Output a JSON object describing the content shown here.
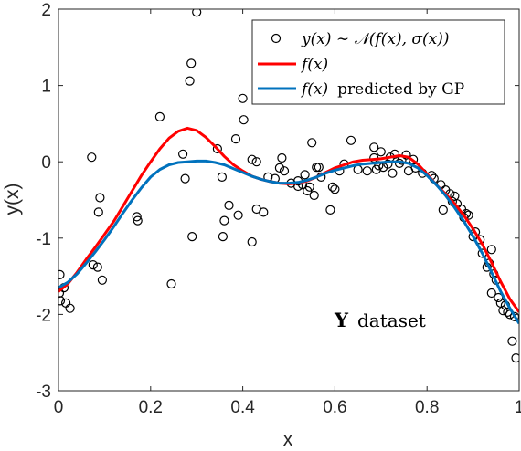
{
  "chart_data": {
    "type": "scatter",
    "xlabel": "x",
    "ylabel": "y(x)",
    "xlim": [
      0,
      1
    ],
    "ylim": [
      -3,
      2
    ],
    "xticks": [
      "0",
      "0.2",
      "0.4",
      "0.6",
      "0.8",
      "1"
    ],
    "yticks": [
      "-3",
      "-2",
      "-1",
      "0",
      "1",
      "2"
    ],
    "grid": false,
    "legend_placement": "top-right",
    "annotation": {
      "bold": "Y",
      "text": "dataset"
    },
    "legend": {
      "data_label": "y(x) ∼ 𝒩(f(x), σ(x))",
      "f_label": "f(x)",
      "gp_label_math": "f(x)",
      "gp_label_text": "predicted by GP"
    },
    "colors": {
      "data": "#000000",
      "f": "#ff0000",
      "gp": "#0072bd"
    },
    "series": [
      {
        "name": "y(x) ∼ 𝒩(f(x), σ(x))",
        "kind": "markers",
        "points": [
          [
            0.002,
            -1.72
          ],
          [
            0.003,
            -1.48
          ],
          [
            0.004,
            -1.82
          ],
          [
            0.012,
            -1.65
          ],
          [
            0.016,
            -1.85
          ],
          [
            0.025,
            -1.92
          ],
          [
            0.072,
            0.06
          ],
          [
            0.075,
            -1.35
          ],
          [
            0.085,
            -1.38
          ],
          [
            0.087,
            -0.66
          ],
          [
            0.09,
            -0.47
          ],
          [
            0.095,
            -1.55
          ],
          [
            0.17,
            -0.72
          ],
          [
            0.172,
            -0.77
          ],
          [
            0.22,
            0.59
          ],
          [
            0.245,
            -1.6
          ],
          [
            0.27,
            0.1
          ],
          [
            0.275,
            -0.22
          ],
          [
            0.285,
            1.06
          ],
          [
            0.288,
            1.29
          ],
          [
            0.29,
            -0.98
          ],
          [
            0.3,
            1.96
          ],
          [
            0.345,
            0.17
          ],
          [
            0.355,
            -0.2
          ],
          [
            0.357,
            -0.98
          ],
          [
            0.36,
            -0.77
          ],
          [
            0.37,
            -0.57
          ],
          [
            0.385,
            0.3
          ],
          [
            0.39,
            -0.7
          ],
          [
            0.4,
            0.83
          ],
          [
            0.402,
            0.55
          ],
          [
            0.42,
            0.03
          ],
          [
            0.42,
            -1.05
          ],
          [
            0.43,
            0.0
          ],
          [
            0.43,
            -0.62
          ],
          [
            0.433,
            0.82
          ],
          [
            0.445,
            -0.66
          ],
          [
            0.455,
            -0.2
          ],
          [
            0.47,
            -0.22
          ],
          [
            0.48,
            -0.08
          ],
          [
            0.485,
            0.05
          ],
          [
            0.49,
            -0.12
          ],
          [
            0.505,
            -0.28
          ],
          [
            0.52,
            -0.32
          ],
          [
            0.52,
            -0.25
          ],
          [
            0.53,
            -0.3
          ],
          [
            0.535,
            -0.17
          ],
          [
            0.54,
            -0.38
          ],
          [
            0.545,
            -0.33
          ],
          [
            0.55,
            0.25
          ],
          [
            0.555,
            -0.44
          ],
          [
            0.56,
            -0.07
          ],
          [
            0.565,
            -0.07
          ],
          [
            0.57,
            -0.2
          ],
          [
            0.59,
            -0.63
          ],
          [
            0.595,
            -0.33
          ],
          [
            0.6,
            -0.36
          ],
          [
            0.61,
            -0.12
          ],
          [
            0.62,
            -0.03
          ],
          [
            0.635,
            0.28
          ],
          [
            0.65,
            -0.1
          ],
          [
            0.67,
            -0.12
          ],
          [
            0.685,
            0.05
          ],
          [
            0.685,
            0.19
          ],
          [
            0.69,
            -0.1
          ],
          [
            0.695,
            -0.05
          ],
          [
            0.7,
            0.13
          ],
          [
            0.705,
            -0.07
          ],
          [
            0.715,
            -0.03
          ],
          [
            0.72,
            0.06
          ],
          [
            0.725,
            -0.15
          ],
          [
            0.73,
            0.1
          ],
          [
            0.74,
            -0.02
          ],
          [
            0.745,
            0.02
          ],
          [
            0.755,
            0.09
          ],
          [
            0.76,
            -0.12
          ],
          [
            0.77,
            0.03
          ],
          [
            0.775,
            -0.08
          ],
          [
            0.79,
            -0.15
          ],
          [
            0.81,
            -0.18
          ],
          [
            0.815,
            -0.22
          ],
          [
            0.83,
            -0.3
          ],
          [
            0.835,
            -0.63
          ],
          [
            0.84,
            -0.37
          ],
          [
            0.85,
            -0.42
          ],
          [
            0.855,
            -0.52
          ],
          [
            0.86,
            -0.45
          ],
          [
            0.865,
            -0.55
          ],
          [
            0.875,
            -0.62
          ],
          [
            0.88,
            -0.73
          ],
          [
            0.885,
            -0.68
          ],
          [
            0.89,
            -0.7
          ],
          [
            0.9,
            -0.98
          ],
          [
            0.905,
            -0.92
          ],
          [
            0.915,
            -1.02
          ],
          [
            0.92,
            -1.2
          ],
          [
            0.93,
            -1.38
          ],
          [
            0.935,
            -1.33
          ],
          [
            0.94,
            -1.15
          ],
          [
            0.94,
            -1.72
          ],
          [
            0.945,
            -1.47
          ],
          [
            0.95,
            -1.55
          ],
          [
            0.955,
            -1.78
          ],
          [
            0.96,
            -1.85
          ],
          [
            0.965,
            -1.95
          ],
          [
            0.97,
            -1.88
          ],
          [
            0.975,
            -1.97
          ],
          [
            0.98,
            -2.0
          ],
          [
            0.985,
            -2.35
          ],
          [
            0.99,
            -2.03
          ],
          [
            0.993,
            -2.57
          ]
        ]
      },
      {
        "name": "f(x)",
        "kind": "line",
        "points": [
          [
            0.0,
            -1.7
          ],
          [
            0.02,
            -1.6
          ],
          [
            0.04,
            -1.45
          ],
          [
            0.06,
            -1.28
          ],
          [
            0.08,
            -1.12
          ],
          [
            0.1,
            -0.95
          ],
          [
            0.12,
            -0.78
          ],
          [
            0.14,
            -0.58
          ],
          [
            0.16,
            -0.38
          ],
          [
            0.18,
            -0.18
          ],
          [
            0.2,
            0.0
          ],
          [
            0.22,
            0.17
          ],
          [
            0.24,
            0.31
          ],
          [
            0.26,
            0.4
          ],
          [
            0.28,
            0.44
          ],
          [
            0.3,
            0.41
          ],
          [
            0.32,
            0.32
          ],
          [
            0.34,
            0.2
          ],
          [
            0.36,
            0.07
          ],
          [
            0.38,
            -0.04
          ],
          [
            0.4,
            -0.12
          ],
          [
            0.42,
            -0.19
          ],
          [
            0.44,
            -0.23
          ],
          [
            0.46,
            -0.26
          ],
          [
            0.48,
            -0.28
          ],
          [
            0.5,
            -0.29
          ],
          [
            0.52,
            -0.28
          ],
          [
            0.54,
            -0.25
          ],
          [
            0.56,
            -0.2
          ],
          [
            0.58,
            -0.14
          ],
          [
            0.6,
            -0.08
          ],
          [
            0.62,
            -0.04
          ],
          [
            0.64,
            0.0
          ],
          [
            0.66,
            0.02
          ],
          [
            0.68,
            0.03
          ],
          [
            0.7,
            0.04
          ],
          [
            0.72,
            0.06
          ],
          [
            0.74,
            0.08
          ],
          [
            0.76,
            0.06
          ],
          [
            0.78,
            -0.03
          ],
          [
            0.8,
            -0.16
          ],
          [
            0.82,
            -0.3
          ],
          [
            0.84,
            -0.42
          ],
          [
            0.86,
            -0.55
          ],
          [
            0.88,
            -0.7
          ],
          [
            0.9,
            -0.88
          ],
          [
            0.92,
            -1.08
          ],
          [
            0.94,
            -1.32
          ],
          [
            0.96,
            -1.57
          ],
          [
            0.98,
            -1.8
          ],
          [
            1.0,
            -1.97
          ]
        ]
      },
      {
        "name": "f(x) predicted by GP",
        "kind": "line",
        "points": [
          [
            0.0,
            -1.65
          ],
          [
            0.02,
            -1.58
          ],
          [
            0.04,
            -1.47
          ],
          [
            0.06,
            -1.33
          ],
          [
            0.08,
            -1.18
          ],
          [
            0.1,
            -1.02
          ],
          [
            0.12,
            -0.85
          ],
          [
            0.14,
            -0.67
          ],
          [
            0.16,
            -0.5
          ],
          [
            0.18,
            -0.34
          ],
          [
            0.2,
            -0.2
          ],
          [
            0.22,
            -0.1
          ],
          [
            0.24,
            -0.04
          ],
          [
            0.26,
            -0.01
          ],
          [
            0.28,
            0.0
          ],
          [
            0.3,
            0.01
          ],
          [
            0.32,
            0.01
          ],
          [
            0.34,
            -0.01
          ],
          [
            0.36,
            -0.04
          ],
          [
            0.38,
            -0.09
          ],
          [
            0.4,
            -0.14
          ],
          [
            0.42,
            -0.19
          ],
          [
            0.44,
            -0.23
          ],
          [
            0.46,
            -0.26
          ],
          [
            0.48,
            -0.28
          ],
          [
            0.5,
            -0.28
          ],
          [
            0.52,
            -0.27
          ],
          [
            0.54,
            -0.24
          ],
          [
            0.56,
            -0.2
          ],
          [
            0.58,
            -0.15
          ],
          [
            0.6,
            -0.11
          ],
          [
            0.62,
            -0.08
          ],
          [
            0.64,
            -0.05
          ],
          [
            0.66,
            -0.03
          ],
          [
            0.68,
            -0.02
          ],
          [
            0.7,
            -0.01
          ],
          [
            0.72,
            0.0
          ],
          [
            0.74,
            0.0
          ],
          [
            0.76,
            -0.02
          ],
          [
            0.78,
            -0.08
          ],
          [
            0.8,
            -0.18
          ],
          [
            0.82,
            -0.3
          ],
          [
            0.84,
            -0.44
          ],
          [
            0.86,
            -0.6
          ],
          [
            0.88,
            -0.78
          ],
          [
            0.9,
            -0.98
          ],
          [
            0.92,
            -1.2
          ],
          [
            0.94,
            -1.45
          ],
          [
            0.96,
            -1.7
          ],
          [
            0.98,
            -1.92
          ],
          [
            1.0,
            -2.12
          ]
        ]
      }
    ]
  }
}
